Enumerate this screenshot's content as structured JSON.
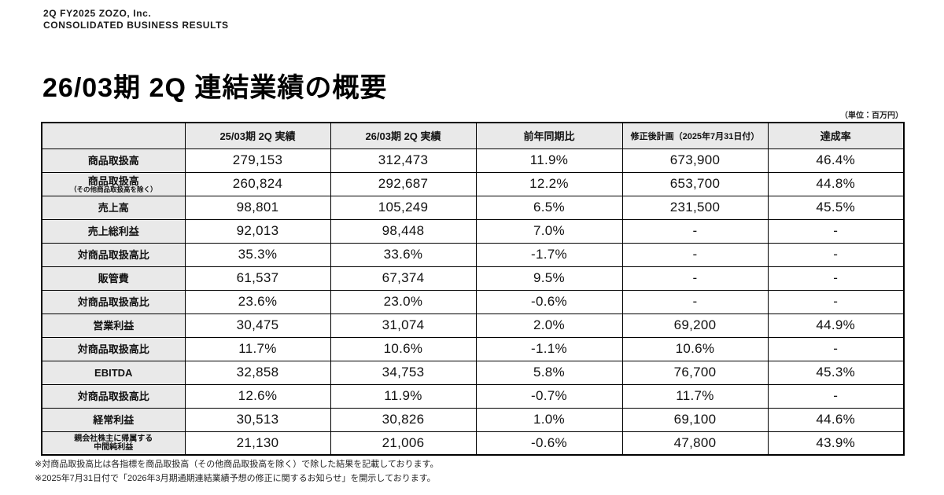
{
  "colors": {
    "header_bg": "#e9e9e9",
    "border": "#000000",
    "text": "#111111"
  },
  "header": {
    "eyebrow_line1": "2Q FY2025 ZOZO, Inc.",
    "eyebrow_line2": "CONSOLIDATED BUSINESS RESULTS",
    "title": "26/03期 2Q 連結業績の概要",
    "unit_note": "（単位：百万円）"
  },
  "table": {
    "column_headers": {
      "label_col": "",
      "col1": "25/03期 2Q 実績",
      "col2": "26/03期 2Q 実績",
      "col3": "前年同期比",
      "col4": "修正後計画（2025年7月31日付）",
      "col5": "達成率"
    },
    "rows": [
      {
        "label": "商品取扱高",
        "values": [
          "279,153",
          "312,473",
          "11.9%",
          "673,900",
          "46.4%"
        ],
        "dashed_top": false
      },
      {
        "label": "商品取扱高",
        "sublabel": "（その他商品取扱高を除く）",
        "values": [
          "260,824",
          "292,687",
          "12.2%",
          "653,700",
          "44.8%"
        ],
        "dashed_top": false
      },
      {
        "label": "売上高",
        "values": [
          "98,801",
          "105,249",
          "6.5%",
          "231,500",
          "45.5%"
        ],
        "dashed_top": false
      },
      {
        "label": "売上総利益",
        "values": [
          "92,013",
          "98,448",
          "7.0%",
          "-",
          "-"
        ],
        "dashed_top": false
      },
      {
        "label": "対商品取扱高比",
        "values": [
          "35.3%",
          "33.6%",
          "-1.7%",
          "-",
          "-"
        ],
        "dashed_top": true
      },
      {
        "label": "販管費",
        "values": [
          "61,537",
          "67,374",
          "9.5%",
          "-",
          "-"
        ],
        "dashed_top": false
      },
      {
        "label": "対商品取扱高比",
        "values": [
          "23.6%",
          "23.0%",
          "-0.6%",
          "-",
          "-"
        ],
        "dashed_top": true
      },
      {
        "label": "営業利益",
        "values": [
          "30,475",
          "31,074",
          "2.0%",
          "69,200",
          "44.9%"
        ],
        "dashed_top": false
      },
      {
        "label": "対商品取扱高比",
        "values": [
          "11.7%",
          "10.6%",
          "-1.1%",
          "10.6%",
          "-"
        ],
        "dashed_top": true
      },
      {
        "label": "EBITDA",
        "values": [
          "32,858",
          "34,753",
          "5.8%",
          "76,700",
          "45.3%"
        ],
        "dashed_top": false
      },
      {
        "label": "対商品取扱高比",
        "values": [
          "12.6%",
          "11.9%",
          "-0.7%",
          "11.7%",
          "-"
        ],
        "dashed_top": true
      },
      {
        "label": "経常利益",
        "values": [
          "30,513",
          "30,826",
          "1.0%",
          "69,100",
          "44.6%"
        ],
        "dashed_top": false
      },
      {
        "label": "親会社株主に帰属する",
        "label2": "中間純利益",
        "small_label": true,
        "values": [
          "21,130",
          "21,006",
          "-0.6%",
          "47,800",
          "43.9%"
        ],
        "dashed_top": false
      }
    ]
  },
  "footnotes": {
    "note1": "※対商品取扱高比は各指標を商品取扱高（その他商品取扱高を除く）で除した結果を記載しております。",
    "note2": "※2025年7月31日付で「2026年3月期通期連結業績予想の修正に関するお知らせ」を開示しております。"
  }
}
